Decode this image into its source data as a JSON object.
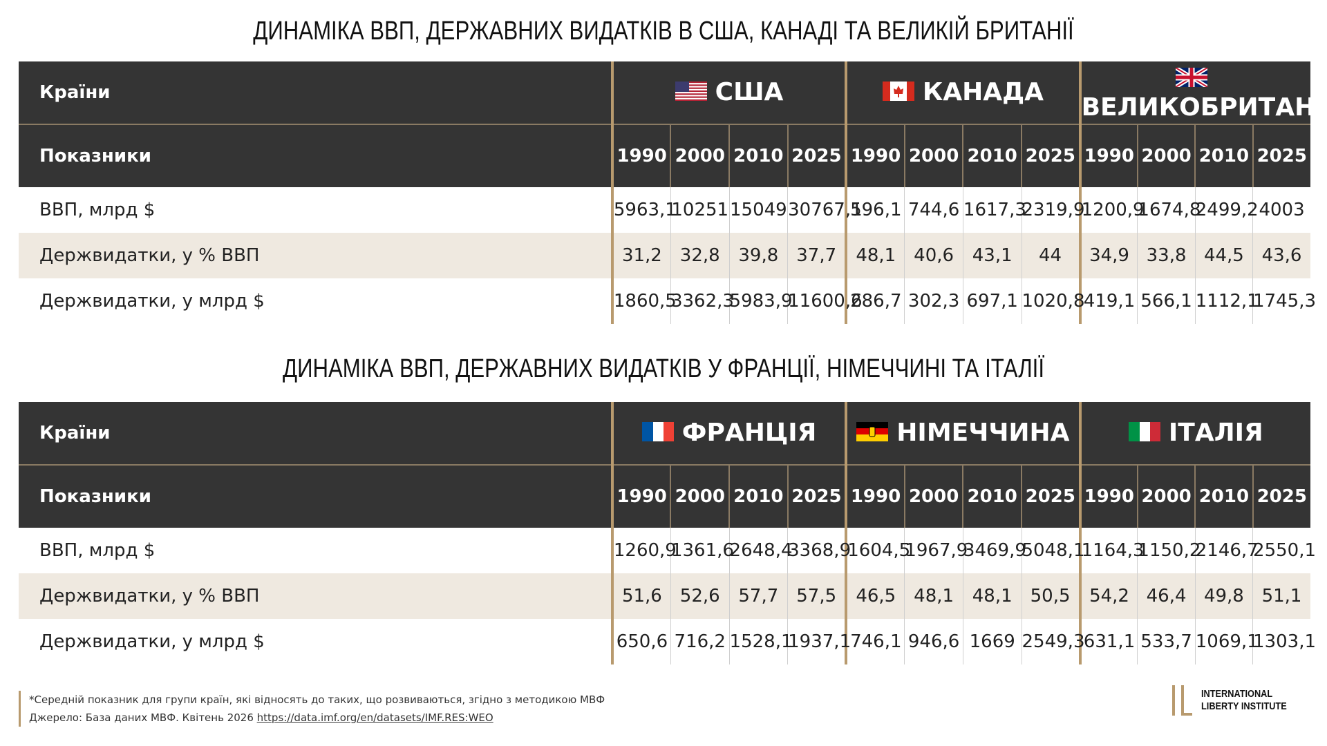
{
  "tables": [
    {
      "title": "ДИНАМІКА ВВП, ДЕРЖАВНИХ ВИДАТКІВ В США, КАНАДІ ТА ВЕЛИКІЙ БРИТАНІЇ",
      "header_label": "Країни",
      "countries": [
        "США",
        "КАНАДА",
        "ВЕЛИКОБРИТАНІЯ"
      ],
      "subheader_label": "Показники",
      "years": [
        "1990",
        "2000",
        "2010",
        "2025"
      ],
      "rows": [
        {
          "label": "ВВП, млрд $",
          "values": [
            "5963,1",
            "10251",
            "15049",
            "30767,1",
            "596,1",
            "744,6",
            "1617,3",
            "2319,9",
            "1200,9",
            "1674,8",
            "2499,2",
            "4003"
          ]
        },
        {
          "label": "Держвидатки, у % ВВП",
          "values": [
            "31,2",
            "32,8",
            "39,8",
            "37,7",
            "48,1",
            "40,6",
            "43,1",
            "44",
            "34,9",
            "33,8",
            "44,5",
            "43,6"
          ]
        },
        {
          "label": "Держвидатки, у млрд $",
          "values": [
            "1860,5",
            "3362,3",
            "5983,9",
            "11600,6",
            "286,7",
            "302,3",
            "697,1",
            "1020,8",
            "419,1",
            "566,1",
            "1112,1",
            "1745,3"
          ]
        }
      ]
    },
    {
      "title": "ДИНАМІКА ВВП, ДЕРЖАВНИХ ВИДАТКІВ У ФРАНЦІЇ, НІМЕЧЧИНІ ТА ІТАЛІЇ",
      "header_label": "Країни",
      "countries": [
        "ФРАНЦІЯ",
        "НІМЕЧЧИНА",
        "ІТАЛІЯ"
      ],
      "subheader_label": "Показники",
      "years": [
        "1990",
        "2000",
        "2010",
        "2025"
      ],
      "rows": [
        {
          "label": "ВВП, млрд $",
          "values": [
            "1260,9",
            "1361,6",
            "2648,4",
            "3368,9",
            "1604,5",
            "1967,9",
            "3469,9",
            "5048,1",
            "1164,3",
            "1150,2",
            "2146,7",
            "2550,1"
          ]
        },
        {
          "label": "Держвидатки, у % ВВП",
          "values": [
            "51,6",
            "52,6",
            "57,7",
            "57,5",
            "46,5",
            "48,1",
            "48,1",
            "50,5",
            "54,2",
            "46,4",
            "49,8",
            "51,1"
          ]
        },
        {
          "label": "Держвидатки, у млрд $",
          "values": [
            "650,6",
            "716,2",
            "1528,1",
            "1937,1",
            "746,1",
            "946,6",
            "1669",
            "2549,3",
            "631,1",
            "533,7",
            "1069,1",
            "1303,1"
          ]
        }
      ]
    }
  ],
  "footer": {
    "note": "*Середній показник для групи країн, які відносять до таких, що розвиваються, згідно з методикою МВФ",
    "source": "Джерело: База даних МВФ. Квітень 2026",
    "link": "https://data.imf.org/en/datasets/IMF.RES:WEO"
  },
  "logo": {
    "line1": "INTERNATIONAL",
    "line2": "LIBERTY INSTITUTE"
  }
}
